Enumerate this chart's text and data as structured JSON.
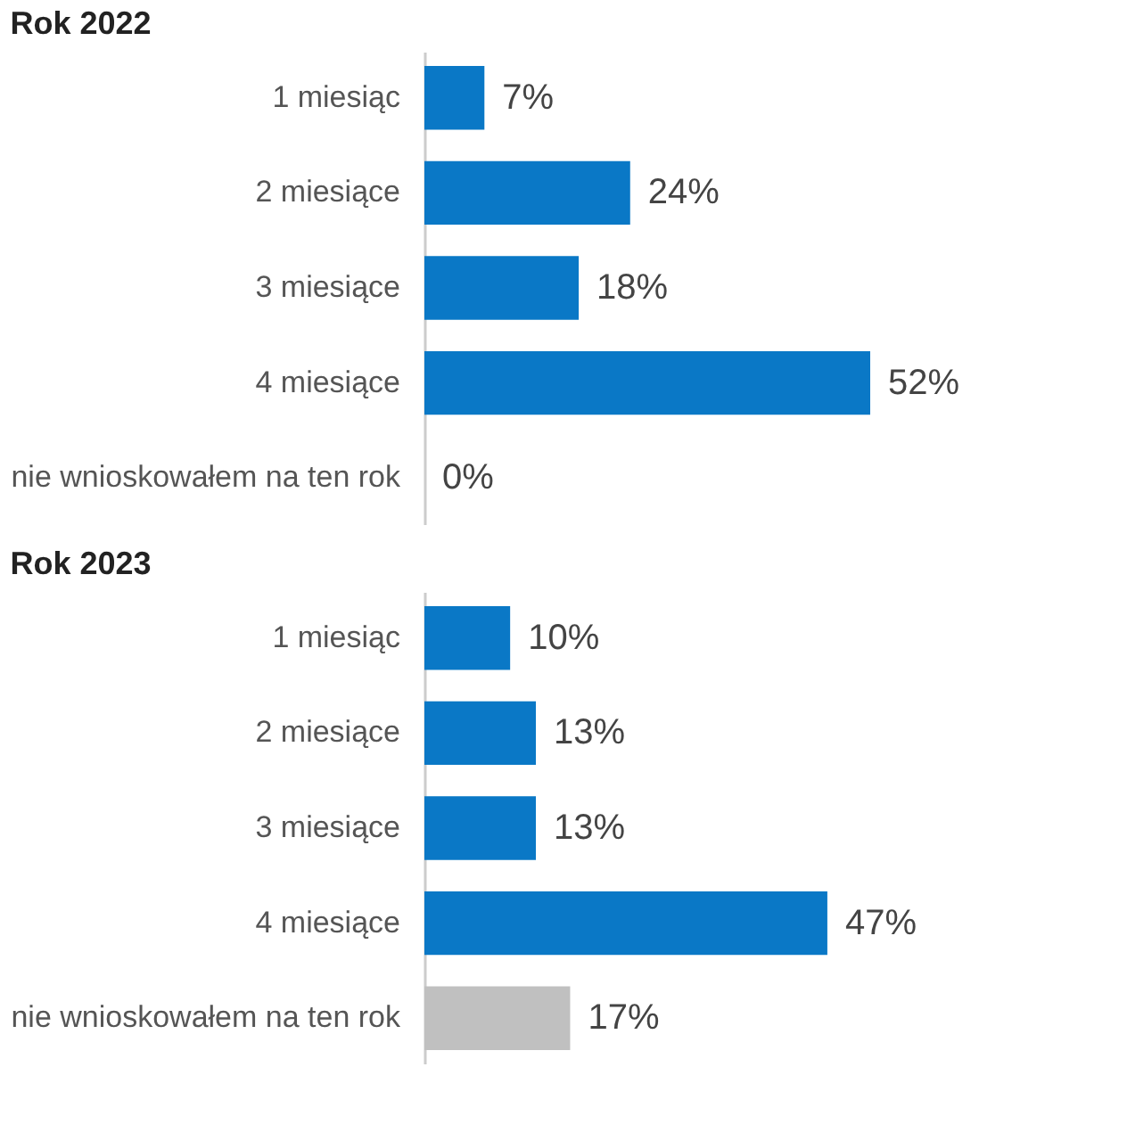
{
  "chart_data": [
    {
      "type": "bar",
      "orientation": "horizontal",
      "title": "Rok 2022",
      "categories": [
        "1 miesiąc",
        "2 miesiące",
        "3 miesiące",
        "4 miesiące",
        "nie wnioskowałem na ten rok"
      ],
      "values": [
        7,
        24,
        18,
        52,
        0
      ],
      "colors": [
        "#0a78c6",
        "#0a78c6",
        "#0a78c6",
        "#0a78c6",
        "#c0c0c0"
      ],
      "value_labels": [
        "7%",
        "24%",
        "18%",
        "52%",
        "0%"
      ]
    },
    {
      "type": "bar",
      "orientation": "horizontal",
      "title": "Rok 2023",
      "categories": [
        "1 miesiąc",
        "2 miesiące",
        "3 miesiące",
        "4 miesiące",
        "nie wnioskowałem na ten rok"
      ],
      "values": [
        10,
        13,
        13,
        47,
        17
      ],
      "colors": [
        "#0a78c6",
        "#0a78c6",
        "#0a78c6",
        "#0a78c6",
        "#c0c0c0"
      ],
      "value_labels": [
        "10%",
        "13%",
        "13%",
        "47%",
        "17%"
      ]
    }
  ]
}
